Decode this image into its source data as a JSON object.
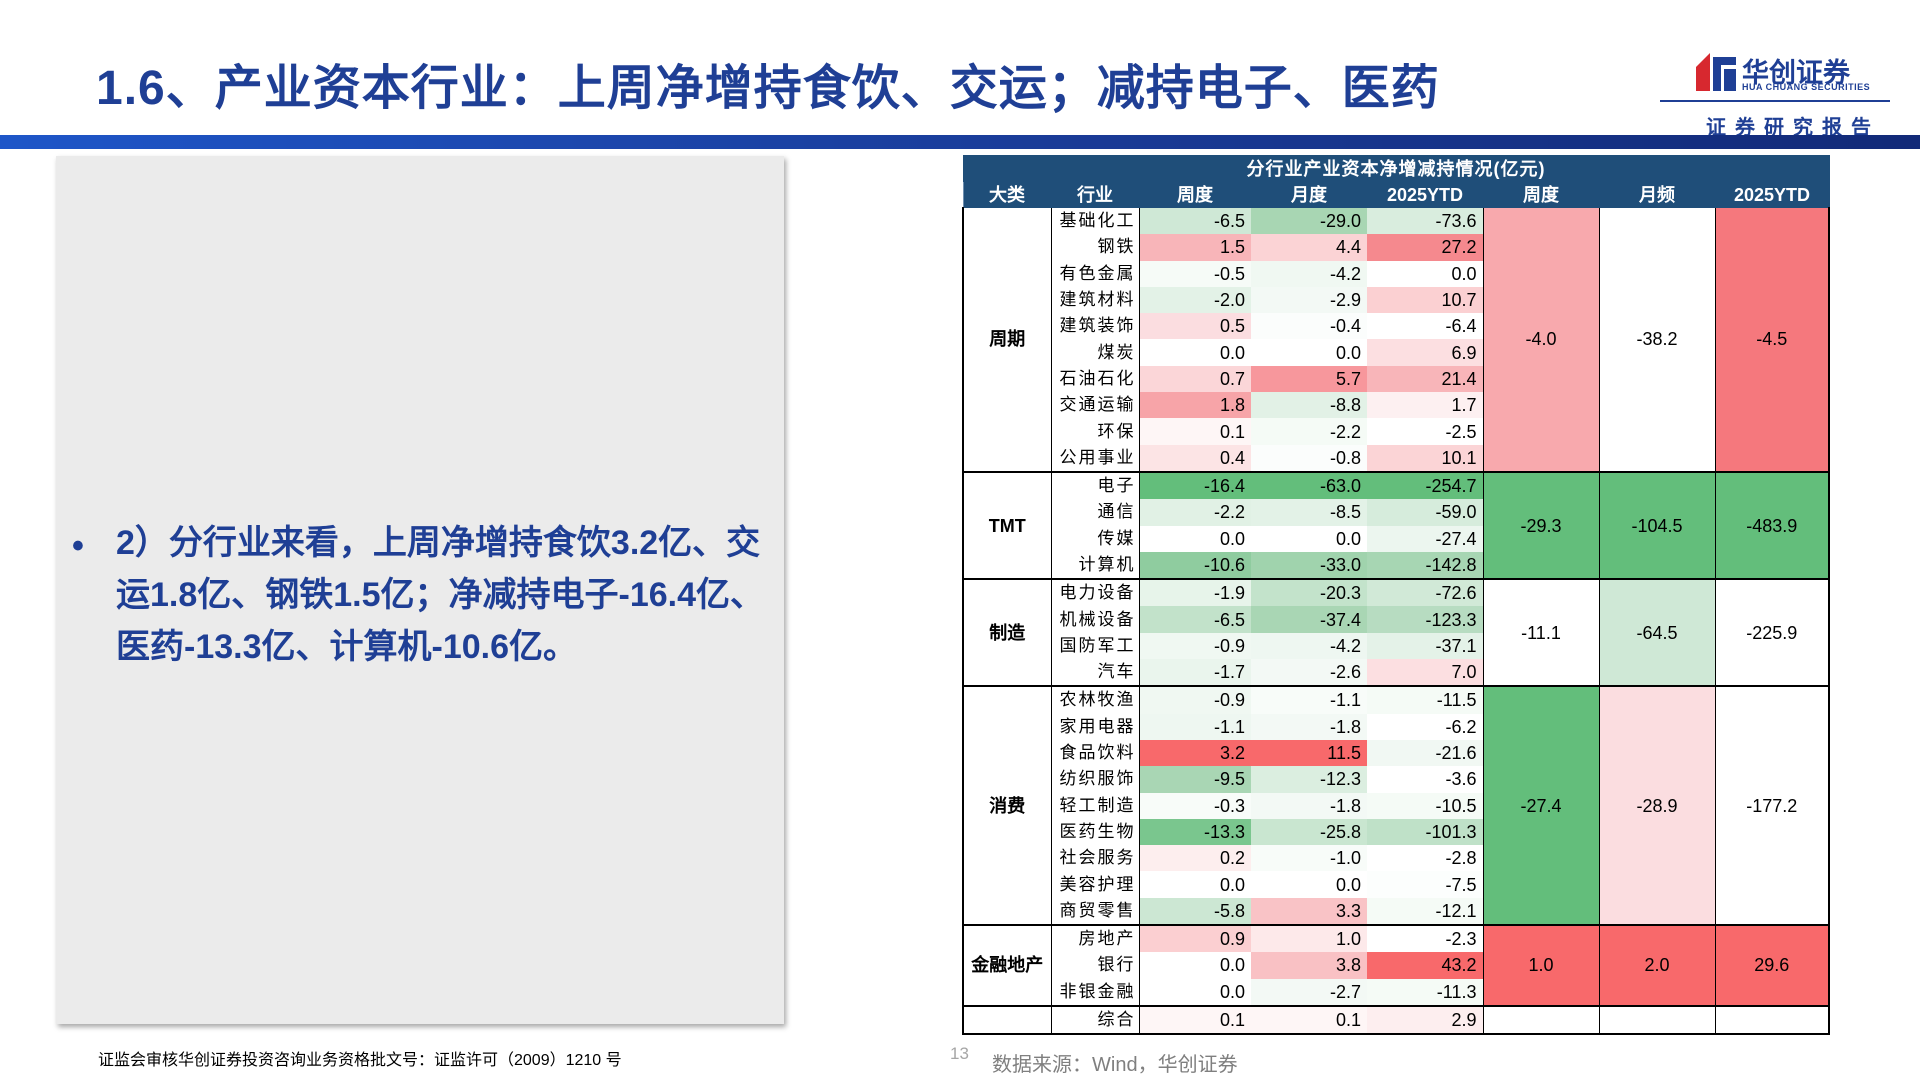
{
  "page": {
    "title": "1.6、产业资本行业：上周净增持食饮、交运；减持电子、医药",
    "page_number": "13",
    "license_note": "证监会审核华创证券投资咨询业务资格批文号：证监许可（2009）1210 号",
    "source_note": "数据来源：Wind，华创证券",
    "colors": {
      "accent": "#1f3f95",
      "header_bg": "#1f4e79",
      "panel_bg": "#ebebeb"
    }
  },
  "brand": {
    "name": "华创证券",
    "name_en": "HUA CHUANG SECURITIES",
    "tagline": "证券研究报告",
    "logo_icon": "huachuang-logo-icon"
  },
  "summary": {
    "bullet": "•",
    "text": "2）分行业来看，上周净增持食饮3.2亿、交运1.8亿、钢铁1.5亿；净减持电子-16.4亿、医药-13.3亿、计算机-10.6亿。"
  },
  "table": {
    "title": "分行业产业资本净增减持情况(亿元)",
    "headers": [
      "大类",
      "行业",
      "周度",
      "月度",
      "2025YTD",
      "周度",
      "月频",
      "2025YTD"
    ],
    "groups": [
      {
        "name": "周期",
        "agg": [
          "-4.0",
          "-38.2",
          "-4.5"
        ],
        "agg_colors": [
          "#f8a9ad",
          "#ffffff",
          "#f5787d"
        ],
        "rows": [
          {
            "industry": "基础化工",
            "values": [
              "-6.5",
              "-29.0",
              "-73.6"
            ],
            "colors": [
              "#cfe8d6",
              "#a8d6b3",
              "#d9edde"
            ]
          },
          {
            "industry": "钢铁",
            "values": [
              "1.5",
              "4.4",
              "27.2"
            ],
            "colors": [
              "#f8b5b9",
              "#fbd3d5",
              "#f5898e"
            ]
          },
          {
            "industry": "有色金属",
            "values": [
              "-0.5",
              "-4.2",
              "0.0"
            ],
            "colors": [
              "#f6fbf7",
              "#f0f8f2",
              "#ffffff"
            ]
          },
          {
            "industry": "建筑材料",
            "values": [
              "-2.0",
              "-2.9",
              "10.7"
            ],
            "colors": [
              "#e3f2e7",
              "#f3f9f5",
              "#fbd0d2"
            ]
          },
          {
            "industry": "建筑装饰",
            "values": [
              "0.5",
              "-0.4",
              "-6.4"
            ],
            "colors": [
              "#fbdde0",
              "#fbfdfc",
              "#ffffff"
            ]
          },
          {
            "industry": "煤炭",
            "values": [
              "0.0",
              "0.0",
              "6.9"
            ],
            "colors": [
              "#ffffff",
              "#ffffff",
              "#fcdfe1"
            ]
          },
          {
            "industry": "石油石化",
            "values": [
              "0.7",
              "5.7",
              "21.4"
            ],
            "colors": [
              "#fbd6d8",
              "#f7979c",
              "#f8b5b9"
            ]
          },
          {
            "industry": "交通运输",
            "values": [
              "1.8",
              "-8.8",
              "1.7"
            ],
            "colors": [
              "#f7a4a8",
              "#e2f1e6",
              "#fdf0f1"
            ]
          },
          {
            "industry": "环保",
            "values": [
              "0.1",
              "-2.2",
              "-2.5"
            ],
            "colors": [
              "#fef6f6",
              "#f5fbf6",
              "#ffffff"
            ]
          },
          {
            "industry": "公用事业",
            "values": [
              "0.4",
              "-0.8",
              "10.1"
            ],
            "colors": [
              "#fce4e5",
              "#fbfdfc",
              "#fbd4d6"
            ]
          }
        ]
      },
      {
        "name": "TMT",
        "agg": [
          "-29.3",
          "-104.5",
          "-483.9"
        ],
        "agg_colors": [
          "#63be7b",
          "#63be7b",
          "#63be7b"
        ],
        "rows": [
          {
            "industry": "电子",
            "values": [
              "-16.4",
              "-63.0",
              "-254.7"
            ],
            "colors": [
              "#63be7b",
              "#63be7b",
              "#63be7b"
            ]
          },
          {
            "industry": "通信",
            "values": [
              "-2.2",
              "-8.5",
              "-59.0"
            ],
            "colors": [
              "#e1f1e5",
              "#e3f2e7",
              "#d6ecdc"
            ]
          },
          {
            "industry": "传媒",
            "values": [
              "0.0",
              "0.0",
              "-27.4"
            ],
            "colors": [
              "#ffffff",
              "#ffffff",
              "#ecf6ef"
            ]
          },
          {
            "industry": "计算机",
            "values": [
              "-10.6",
              "-33.0",
              "-142.8"
            ],
            "colors": [
              "#8fcc9f",
              "#a0d3ad",
              "#a7d6b3"
            ]
          }
        ]
      },
      {
        "name": "制造",
        "agg": [
          "-11.1",
          "-64.5",
          "-225.9"
        ],
        "agg_colors": [
          "#ffffff",
          "#cfe8d6",
          "#ffffff"
        ],
        "rows": [
          {
            "industry": "电力设备",
            "values": [
              "-1.9",
              "-20.3",
              "-72.6"
            ],
            "colors": [
              "#e7f4ea",
              "#c3e3cb",
              "#d1e9d7"
            ]
          },
          {
            "industry": "机械设备",
            "values": [
              "-6.5",
              "-37.4",
              "-123.3"
            ],
            "colors": [
              "#c2e2ca",
              "#a9d6b4",
              "#b7dcc1"
            ]
          },
          {
            "industry": "国防军工",
            "values": [
              "-0.9",
              "-4.2",
              "-37.1"
            ],
            "colors": [
              "#f0f8f2",
              "#eef7f1",
              "#e4f2e8"
            ]
          },
          {
            "industry": "汽车",
            "values": [
              "-1.7",
              "-2.6",
              "7.0"
            ],
            "colors": [
              "#eaf5ed",
              "#f3f9f5",
              "#fcdfe1"
            ]
          }
        ]
      },
      {
        "name": "消费",
        "agg": [
          "-27.4",
          "-28.9",
          "-177.2"
        ],
        "agg_colors": [
          "#63be7b",
          "#fbdde0",
          "#ffffff"
        ],
        "rows": [
          {
            "industry": "农林牧渔",
            "values": [
              "-0.9",
              "-1.1",
              "-11.5"
            ],
            "colors": [
              "#f0f8f2",
              "#f8fcf9",
              "#f5fbf6"
            ]
          },
          {
            "industry": "家用电器",
            "values": [
              "-1.1",
              "-1.8",
              "-6.2"
            ],
            "colors": [
              "#eef7f1",
              "#f3f9f5",
              "#ffffff"
            ]
          },
          {
            "industry": "食品饮料",
            "values": [
              "3.2",
              "11.5",
              "-21.6"
            ],
            "colors": [
              "#f8696b",
              "#f8696b",
              "#f1f8f3"
            ]
          },
          {
            "industry": "纺织服饰",
            "values": [
              "-9.5",
              "-12.3",
              "-3.6"
            ],
            "colors": [
              "#a9d6b4",
              "#dbeee0",
              "#ffffff"
            ]
          },
          {
            "industry": "轻工制造",
            "values": [
              "-0.3",
              "-1.8",
              "-10.5"
            ],
            "colors": [
              "#f8fcf9",
              "#f3f9f5",
              "#f5fbf6"
            ]
          },
          {
            "industry": "医药生物",
            "values": [
              "-13.3",
              "-25.8",
              "-101.3"
            ],
            "colors": [
              "#7ac68e",
              "#c9e6d0",
              "#bfe1c8"
            ]
          },
          {
            "industry": "社会服务",
            "values": [
              "0.2",
              "-1.0",
              "-2.8"
            ],
            "colors": [
              "#fdeeee",
              "#f8fcf9",
              "#ffffff"
            ]
          },
          {
            "industry": "美容护理",
            "values": [
              "0.0",
              "0.0",
              "-7.5"
            ],
            "colors": [
              "#ffffff",
              "#ffffff",
              "#fcfefd"
            ]
          },
          {
            "industry": "商贸零售",
            "values": [
              "-5.8",
              "3.3",
              "-12.1"
            ],
            "colors": [
              "#cce7d3",
              "#f9c3c6",
              "#f5fbf6"
            ]
          }
        ]
      },
      {
        "name": "金融地产",
        "agg": [
          "1.0",
          "2.0",
          "29.6"
        ],
        "agg_colors": [
          "#f8696b",
          "#f8696b",
          "#f8696b"
        ],
        "rows": [
          {
            "industry": "房地产",
            "values": [
              "0.9",
              "1.0",
              "-2.3"
            ],
            "colors": [
              "#fbcfd1",
              "#fde9ea",
              "#ffffff"
            ]
          },
          {
            "industry": "银行",
            "values": [
              "0.0",
              "3.8",
              "43.2"
            ],
            "colors": [
              "#ffffff",
              "#f9c1c4",
              "#f8696b"
            ]
          },
          {
            "industry": "非银金融",
            "values": [
              "0.0",
              "-2.7",
              "-11.3"
            ],
            "colors": [
              "#ffffff",
              "#f3f9f5",
              "#f5fbf6"
            ]
          }
        ]
      },
      {
        "name": "",
        "agg": [
          "",
          "",
          ""
        ],
        "agg_colors": [
          "#ffffff",
          "#ffffff",
          "#ffffff"
        ],
        "rows": [
          {
            "industry": "综合",
            "values": [
              "0.1",
              "0.1",
              "2.9"
            ],
            "colors": [
              "#fef6f6",
              "#fef6f6",
              "#fdeeef"
            ]
          }
        ]
      }
    ]
  }
}
